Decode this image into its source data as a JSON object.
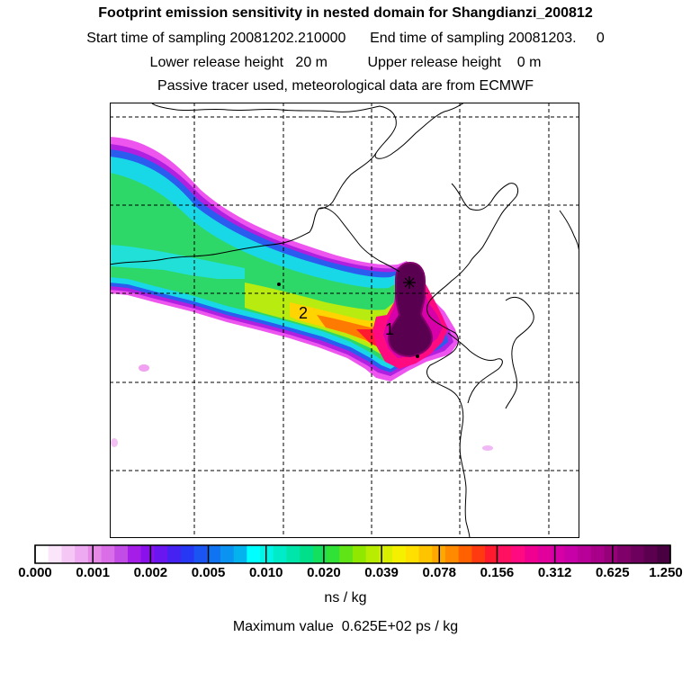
{
  "header": {
    "title": "Footprint emission sensitivity in nested domain for Shangdianzi_200812",
    "line2": "Start time of sampling 20081202.210000      End time of sampling 20081203.     0",
    "line3": "Lower release height   20 m          Upper release height    0 m",
    "line4": "Passive tracer used, meteorological data are from ECMWF"
  },
  "map": {
    "labels": [
      "1",
      "2"
    ],
    "release_site_symbol": "asterisk-icon",
    "colors": {
      "frame": "#000000",
      "coastline": "#000000",
      "grid": "#000000"
    }
  },
  "colorbar": {
    "unit": "ns / kg",
    "ticks": [
      "0.000",
      "0.001",
      "0.002",
      "0.005",
      "0.010",
      "0.020",
      "0.039",
      "0.078",
      "0.156",
      "0.312",
      "0.625",
      "1.250"
    ],
    "colors": [
      "#ffffff",
      "#fbe5fb",
      "#f5c7f5",
      "#eeaaf0",
      "#e68ae8",
      "#d96ee8",
      "#c24de6",
      "#a41ee8",
      "#8a10ec",
      "#6a16f0",
      "#4622f2",
      "#2638f4",
      "#1a55f4",
      "#1073f2",
      "#0a93f0",
      "#04b3ee",
      "#00ffff",
      "#00f5e6",
      "#00ecc8",
      "#00e6aa",
      "#00e08a",
      "#14e060",
      "#30e236",
      "#60e418",
      "#90e800",
      "#b8ec00",
      "#d8f000",
      "#f4f000",
      "#ffe000",
      "#ffc400",
      "#ffa800",
      "#ff8a00",
      "#ff6000",
      "#ff3a10",
      "#ff1a30",
      "#ff1060",
      "#ff0a80",
      "#f00090",
      "#e2009c",
      "#d600a6",
      "#c800a8",
      "#b80098",
      "#a80088",
      "#960078",
      "#80006a",
      "#6c005c",
      "#5a004e",
      "#480040"
    ]
  },
  "max_value": "Maximum value  0.625E+02 ps / kg"
}
